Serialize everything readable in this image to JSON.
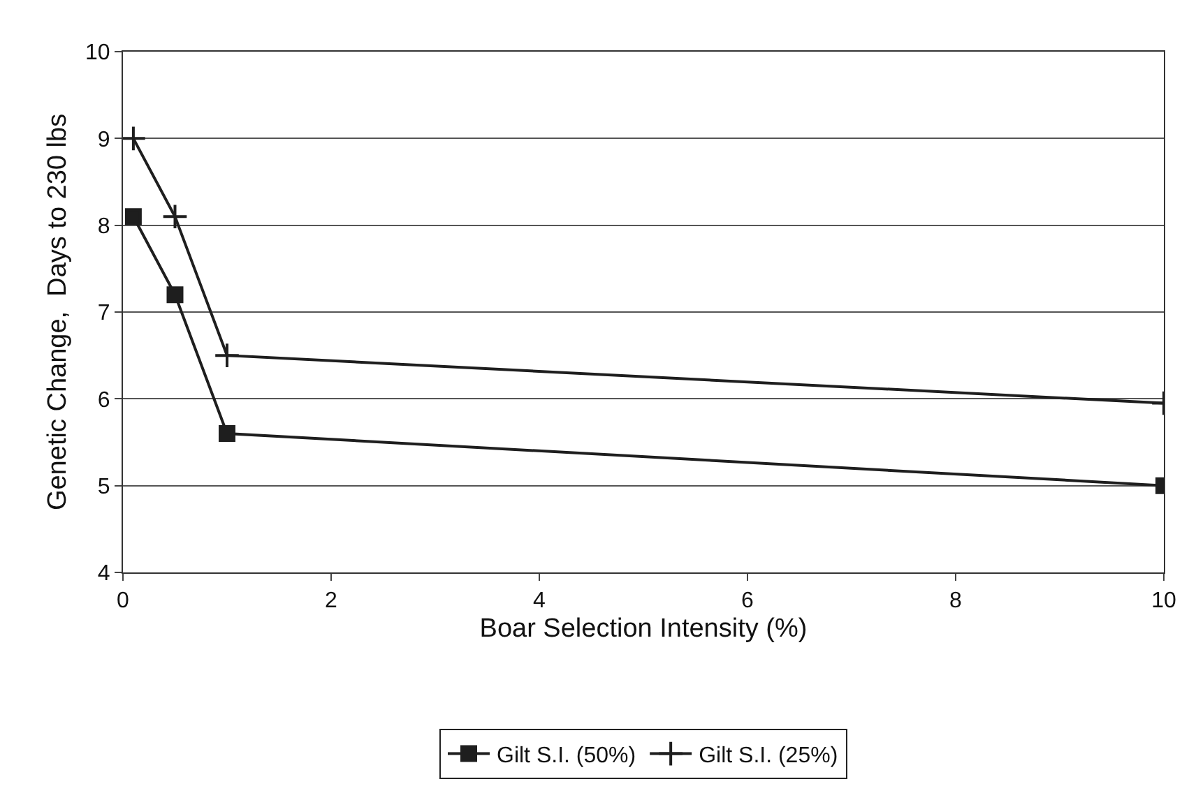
{
  "chart_data": {
    "type": "line",
    "xlabel": "Boar Selection Intensity (%)",
    "ylabel": "Genetic Change,  Days to 230 lbs",
    "xlim": [
      0,
      10
    ],
    "xticks": [
      0,
      2,
      4,
      6,
      8,
      10
    ],
    "ylim": [
      4,
      10
    ],
    "yticks": [
      4,
      5,
      6,
      7,
      8,
      9,
      10
    ],
    "grid": "y",
    "legend": "bottom",
    "series": [
      {
        "name": "Gilt S.I. (50%)",
        "color": "#1e1e1e",
        "marker": "square",
        "x": [
          0.1,
          0.5,
          1,
          10
        ],
        "values": [
          8.1,
          7.2,
          5.6,
          5.0
        ]
      },
      {
        "name": "Gilt S.I. (25%)",
        "color": "#1e1e1e",
        "marker": "cross",
        "x": [
          0.1,
          0.5,
          1,
          10
        ],
        "values": [
          9.0,
          8.1,
          6.5,
          5.95
        ]
      }
    ]
  }
}
